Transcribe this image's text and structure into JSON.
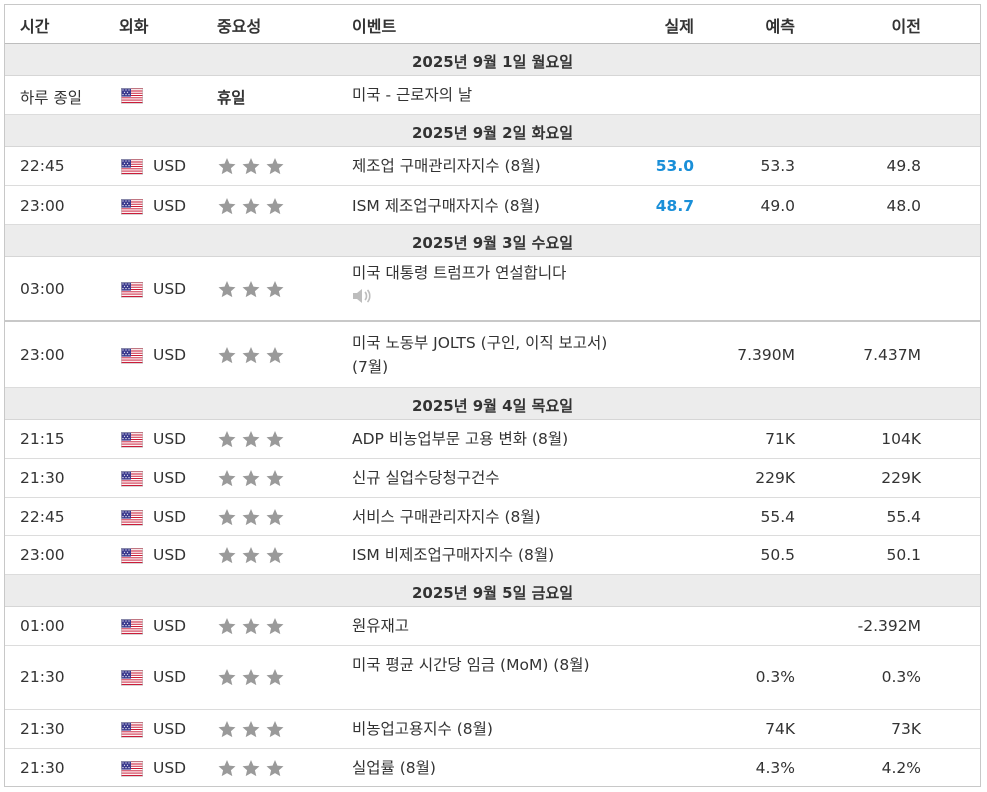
{
  "header": {
    "time": "시간",
    "currency": "외화",
    "importance": "중요성",
    "event": "이벤트",
    "actual": "실제",
    "forecast": "예측",
    "previous": "이전"
  },
  "colors": {
    "actual_accent": "#1a8fd8",
    "star": "#9a9a9a",
    "day_bg": "#ececec"
  },
  "days": [
    {
      "date": "2025년 9월 1일 월요일"
    },
    {
      "date": "2025년 9월 2일 화요일"
    },
    {
      "date": "2025년 9월 3일 수요일"
    },
    {
      "date": "2025년 9월 4일 목요일"
    },
    {
      "date": "2025년 9월 5일 금요일"
    }
  ],
  "rows": [
    {
      "time": "하루 종일",
      "currency": "",
      "importance": "휴일",
      "event": "미국 - 근로자의 날",
      "actual": "",
      "forecast": "",
      "previous": ""
    },
    {
      "time": "22:45",
      "currency": "USD",
      "event": "제조업 구매관리자지수 (8월)",
      "actual": "53.0",
      "forecast": "53.3",
      "previous": "49.8"
    },
    {
      "time": "23:00",
      "currency": "USD",
      "event": "ISM 제조업구매자지수 (8월)",
      "actual": "48.7",
      "forecast": "49.0",
      "previous": "48.0"
    },
    {
      "time": "03:00",
      "currency": "USD",
      "event": "미국 대통령 트럼프가 연설합니다",
      "actual": "",
      "forecast": "",
      "previous": "",
      "icon": "speaker-icon"
    },
    {
      "time": "23:00",
      "currency": "USD",
      "event": "미국 노동부 JOLTS (구인, 이직 보고서) (7월)",
      "actual": "",
      "forecast": "7.390M",
      "previous": "7.437M"
    },
    {
      "time": "21:15",
      "currency": "USD",
      "event": "ADP 비농업부문 고용 변화 (8월)",
      "actual": "",
      "forecast": "71K",
      "previous": "104K"
    },
    {
      "time": "21:30",
      "currency": "USD",
      "event": "신규 실업수당청구건수",
      "actual": "",
      "forecast": "229K",
      "previous": "229K"
    },
    {
      "time": "22:45",
      "currency": "USD",
      "event": "서비스 구매관리자지수 (8월)",
      "actual": "",
      "forecast": "55.4",
      "previous": "55.4"
    },
    {
      "time": "23:00",
      "currency": "USD",
      "event": "ISM 비제조업구매자지수 (8월)",
      "actual": "",
      "forecast": "50.5",
      "previous": "50.1"
    },
    {
      "time": "01:00",
      "currency": "USD",
      "event": "원유재고",
      "actual": "",
      "forecast": "",
      "previous": "-2.392M"
    },
    {
      "time": "21:30",
      "currency": "USD",
      "event": "미국 평균 시간당 임금 (MoM) (8월)",
      "actual": "",
      "forecast": "0.3%",
      "previous": "0.3%"
    },
    {
      "time": "21:30",
      "currency": "USD",
      "event": "비농업고용지수 (8월)",
      "actual": "",
      "forecast": "74K",
      "previous": "73K"
    },
    {
      "time": "21:30",
      "currency": "USD",
      "event": "실업률 (8월)",
      "actual": "",
      "forecast": "4.3%",
      "previous": "4.2%"
    }
  ]
}
